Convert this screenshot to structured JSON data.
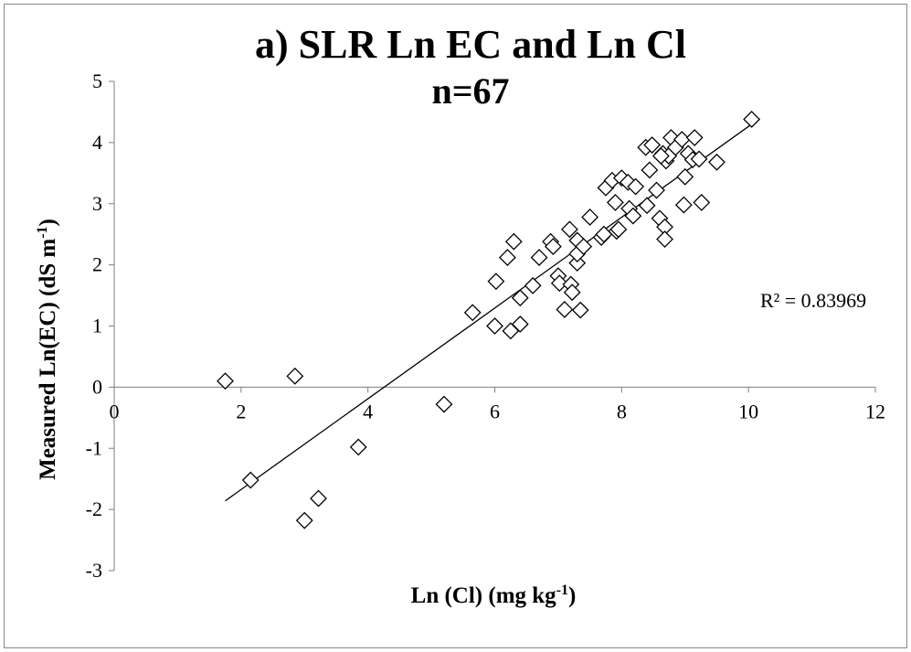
{
  "chart_data": {
    "type": "scatter",
    "title": "a) SLR Ln EC and Ln Cl",
    "subtitle": "n=67",
    "xlabel": {
      "main": "Ln (Cl) (mg kg",
      "sup": "-1",
      "end": ")"
    },
    "ylabel": {
      "main": "Measured Ln(EC) (dS m",
      "sup": "-1",
      "end": ")"
    },
    "xlim": [
      0,
      12
    ],
    "ylim": [
      -3,
      5
    ],
    "x_ticks": [
      "0",
      "2",
      "4",
      "6",
      "8",
      "10",
      "12"
    ],
    "y_ticks": [
      "5",
      "4",
      "3",
      "2",
      "1",
      "0",
      "-1",
      "-2",
      "-3"
    ],
    "x_tick_values": [
      0,
      2,
      4,
      6,
      8,
      10,
      12
    ],
    "y_tick_values": [
      5,
      4,
      3,
      2,
      1,
      0,
      -1,
      -2,
      -3
    ],
    "grid": false,
    "marker": "diamond-open",
    "trendline": {
      "x": [
        1.75,
        10.05
      ],
      "y": [
        -1.86,
        4.3
      ]
    },
    "r2_label": "R² = 0.83969",
    "points": [
      [
        1.75,
        0.1
      ],
      [
        2.85,
        0.18
      ],
      [
        2.15,
        -1.52
      ],
      [
        3.0,
        -2.18
      ],
      [
        3.22,
        -1.82
      ],
      [
        3.85,
        -0.98
      ],
      [
        5.2,
        -0.28
      ],
      [
        5.65,
        1.22
      ],
      [
        6.0,
        1.0
      ],
      [
        6.25,
        0.92
      ],
      [
        6.4,
        1.03
      ],
      [
        6.02,
        1.73
      ],
      [
        6.2,
        2.12
      ],
      [
        6.3,
        2.38
      ],
      [
        6.4,
        1.46
      ],
      [
        6.6,
        1.66
      ],
      [
        6.7,
        2.12
      ],
      [
        6.88,
        2.38
      ],
      [
        6.92,
        2.3
      ],
      [
        7.0,
        1.82
      ],
      [
        7.02,
        1.7
      ],
      [
        7.1,
        1.27
      ],
      [
        7.18,
        2.58
      ],
      [
        7.2,
        1.68
      ],
      [
        7.22,
        1.55
      ],
      [
        7.3,
        2.03
      ],
      [
        7.3,
        2.4
      ],
      [
        7.3,
        2.18
      ],
      [
        7.4,
        2.3
      ],
      [
        7.35,
        1.26
      ],
      [
        7.5,
        2.78
      ],
      [
        7.68,
        2.45
      ],
      [
        7.72,
        2.5
      ],
      [
        7.75,
        3.26
      ],
      [
        7.85,
        3.38
      ],
      [
        7.9,
        3.02
      ],
      [
        7.92,
        2.55
      ],
      [
        7.95,
        2.58
      ],
      [
        8.0,
        3.42
      ],
      [
        8.1,
        3.35
      ],
      [
        8.12,
        2.92
      ],
      [
        8.18,
        2.8
      ],
      [
        8.22,
        3.28
      ],
      [
        8.38,
        3.92
      ],
      [
        8.4,
        2.97
      ],
      [
        8.44,
        3.55
      ],
      [
        8.48,
        3.96
      ],
      [
        8.55,
        3.22
      ],
      [
        8.6,
        2.76
      ],
      [
        8.65,
        3.82
      ],
      [
        8.68,
        2.62
      ],
      [
        8.68,
        2.42
      ],
      [
        8.7,
        3.7
      ],
      [
        8.74,
        3.78
      ],
      [
        8.78,
        4.08
      ],
      [
        8.85,
        3.92
      ],
      [
        8.95,
        4.05
      ],
      [
        8.98,
        2.98
      ],
      [
        9.0,
        3.44
      ],
      [
        9.05,
        3.82
      ],
      [
        9.12,
        3.72
      ],
      [
        9.15,
        4.08
      ],
      [
        9.22,
        3.73
      ],
      [
        9.26,
        3.02
      ],
      [
        9.5,
        3.68
      ],
      [
        8.62,
        3.78
      ],
      [
        10.05,
        4.38
      ]
    ]
  }
}
